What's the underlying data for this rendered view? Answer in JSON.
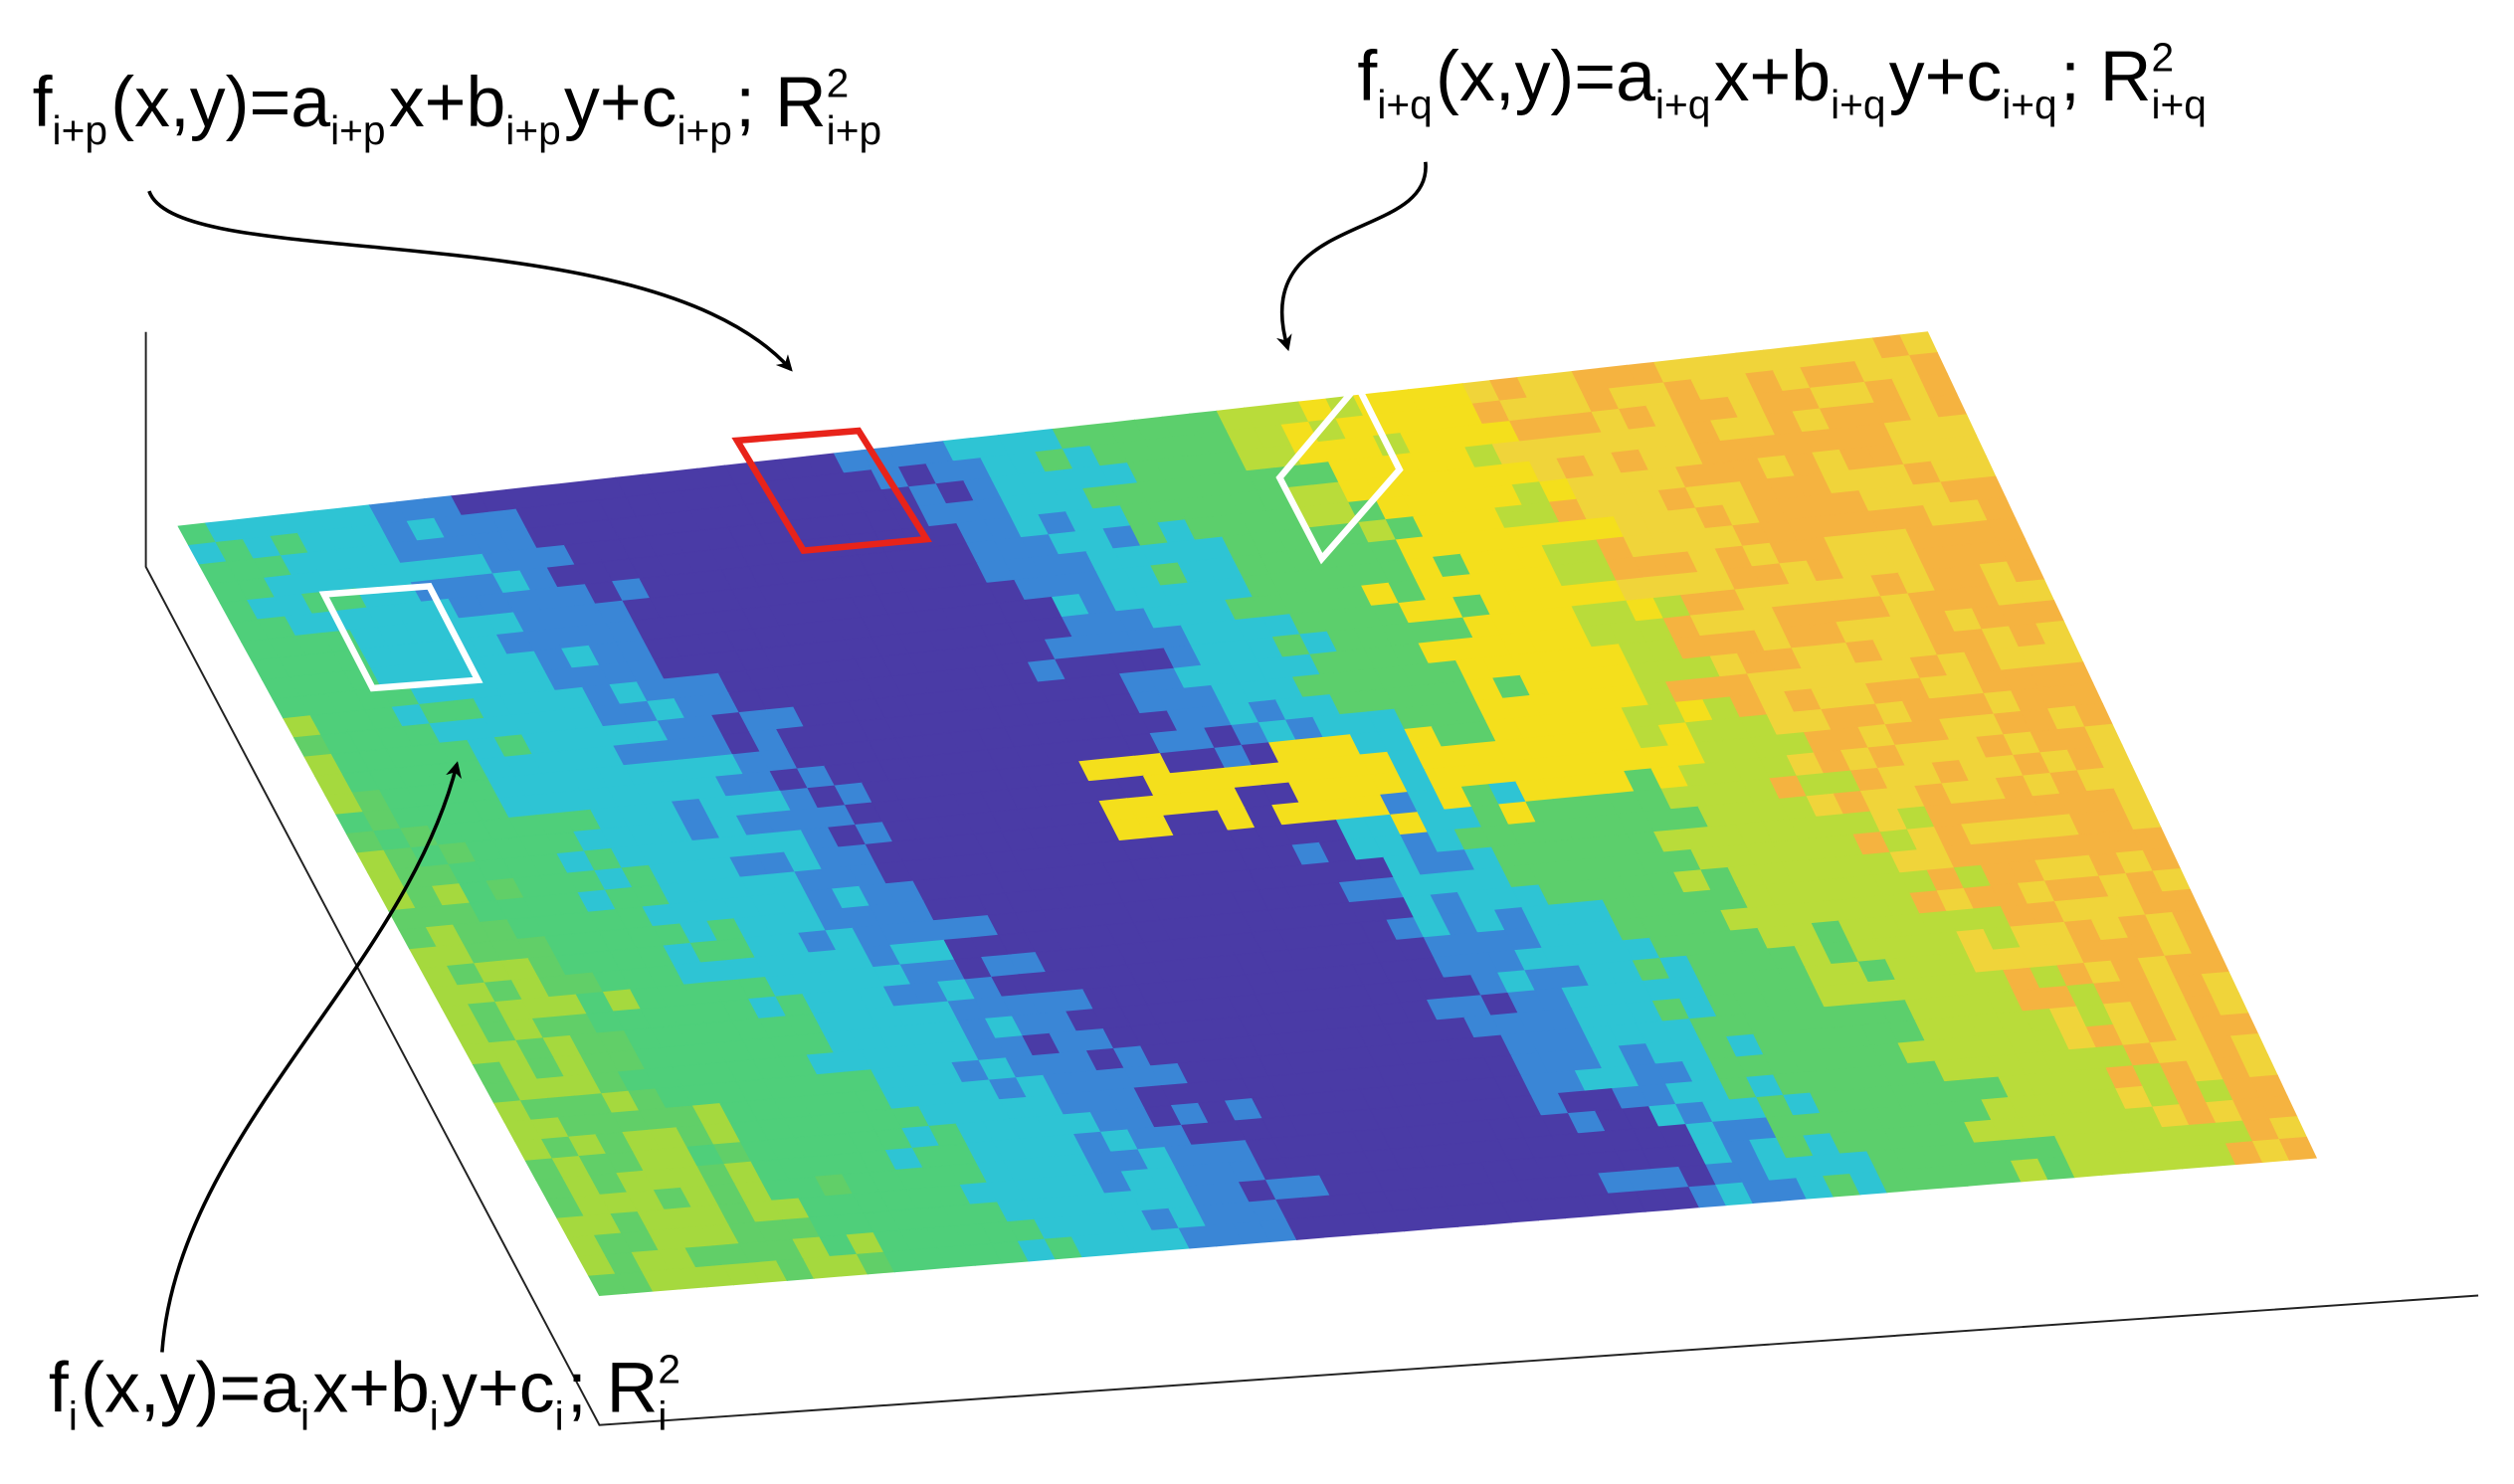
{
  "labels": [
    {
      "segments": [
        {
          "text": "f",
          "pos": "base"
        },
        {
          "text": "i+p",
          "pos": "sub"
        },
        {
          "text": "(x,y)=a",
          "pos": "base"
        },
        {
          "text": "i+p",
          "pos": "sub"
        },
        {
          "text": "x+b",
          "pos": "base"
        },
        {
          "text": "i+p",
          "pos": "sub"
        },
        {
          "text": "y+c",
          "pos": "base"
        },
        {
          "text": "i+p",
          "pos": "sub"
        },
        {
          "text": "; R",
          "pos": "base"
        },
        {
          "text": "2",
          "pos": "sup"
        },
        {
          "text": "i+p",
          "pos": "sub"
        }
      ]
    },
    {
      "segments": [
        {
          "text": "f",
          "pos": "base"
        },
        {
          "text": "i+q",
          "pos": "sub"
        },
        {
          "text": "(x,y)=a",
          "pos": "base"
        },
        {
          "text": "i+q",
          "pos": "sub"
        },
        {
          "text": "x+b",
          "pos": "base"
        },
        {
          "text": "i+q",
          "pos": "sub"
        },
        {
          "text": "y+c",
          "pos": "base"
        },
        {
          "text": "i+q",
          "pos": "sub"
        },
        {
          "text": "; R",
          "pos": "base"
        },
        {
          "text": "2",
          "pos": "sup"
        },
        {
          "text": "i+q",
          "pos": "sub"
        }
      ]
    },
    {
      "segments": [
        {
          "text": "f",
          "pos": "base"
        },
        {
          "text": "i",
          "pos": "sub"
        },
        {
          "text": "(x,y)=a",
          "pos": "base"
        },
        {
          "text": "i",
          "pos": "sub"
        },
        {
          "text": "x+b",
          "pos": "base"
        },
        {
          "text": "i",
          "pos": "sub"
        },
        {
          "text": "y+c",
          "pos": "base"
        },
        {
          "text": "i",
          "pos": "sub"
        },
        {
          "text": "; R",
          "pos": "base"
        },
        {
          "text": "2",
          "pos": "sup"
        },
        {
          "text": "i",
          "pos": "sub"
        }
      ]
    }
  ]
}
